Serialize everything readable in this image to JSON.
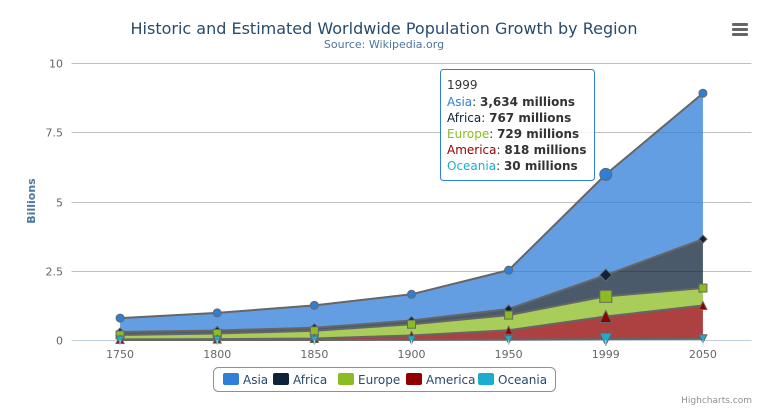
{
  "chart_data": {
    "type": "area",
    "stacking": "normal",
    "title": "Historic and Estimated Worldwide Population Growth by Region",
    "subtitle": "Source: Wikipedia.org",
    "xlabel": "",
    "ylabel": "Billions",
    "categories": [
      "1750",
      "1800",
      "1850",
      "1900",
      "1950",
      "1999",
      "2050"
    ],
    "yticks": [
      "0",
      "2.5",
      "5",
      "7.5",
      "10"
    ],
    "ylim": [
      0,
      10000
    ],
    "grid": true,
    "legend_placement": "bottom",
    "series": [
      {
        "name": "Asia",
        "color": "#2f7ed8",
        "marker": "circle",
        "values": [
          502,
          635,
          809,
          947,
          1402,
          3634,
          5268
        ]
      },
      {
        "name": "Africa",
        "color": "#0d233a",
        "marker": "diamond",
        "values": [
          106,
          107,
          111,
          133,
          221,
          767,
          1766
        ]
      },
      {
        "name": "Europe",
        "color": "#8bbc21",
        "marker": "square",
        "values": [
          163,
          203,
          276,
          408,
          547,
          729,
          628
        ]
      },
      {
        "name": "America",
        "color": "#910000",
        "marker": "triangle",
        "values": [
          18,
          31,
          54,
          156,
          339,
          818,
          1201
        ]
      },
      {
        "name": "Oceania",
        "color": "#1aadce",
        "marker": "triangle-down",
        "values": [
          2,
          2,
          2,
          6,
          13,
          30,
          46
        ]
      }
    ],
    "tooltip": {
      "header": "1999",
      "rows": [
        {
          "name": "Asia",
          "value": "3,634 millions"
        },
        {
          "name": "Africa",
          "value": "767 millions"
        },
        {
          "name": "Europe",
          "value": "729 millions"
        },
        {
          "name": "America",
          "value": "818 millions"
        },
        {
          "name": "Oceania",
          "value": "30 millions"
        }
      ]
    },
    "credits": "Highcharts.com",
    "menu_icon": "hamburger-menu-icon"
  }
}
